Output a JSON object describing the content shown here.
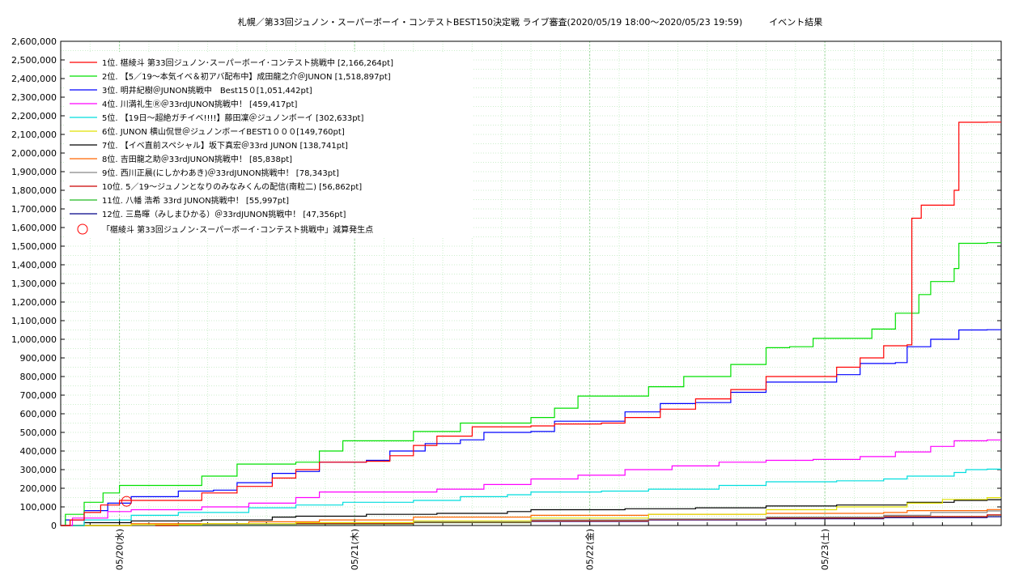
{
  "chart_data": {
    "type": "line",
    "title": "札幌／第33回ジュノン・スーパーボーイ・コンテストBEST150決定戦 ライブ審査(2020/05/19 18:00〜2020/05/23 19:59)　　　イベント結果",
    "xlabel": "",
    "ylabel": "",
    "x_range_days": [
      0,
      4.0
    ],
    "ylim": [
      0,
      2600000
    ],
    "y_ticks": [
      0,
      100000,
      200000,
      300000,
      400000,
      500000,
      600000,
      700000,
      800000,
      900000,
      1000000,
      1100000,
      1200000,
      1300000,
      1400000,
      1500000,
      1600000,
      1700000,
      1800000,
      1900000,
      2000000,
      2100000,
      2200000,
      2300000,
      2400000,
      2500000,
      2600000
    ],
    "y_tick_labels": [
      "0",
      "100,000",
      "200,000",
      "300,000",
      "400,000",
      "500,000",
      "600,000",
      "700,000",
      "800,000",
      "900,000",
      "1,000,000",
      "1,100,000",
      "1,200,000",
      "1,300,000",
      "1,400,000",
      "1,500,000",
      "1,600,000",
      "1,700,000",
      "1,800,000",
      "1,900,000",
      "2,000,000",
      "2,100,000",
      "2,200,000",
      "2,300,000",
      "2,400,000",
      "2,500,000",
      "2,600,000"
    ],
    "x_ticks": [
      {
        "x": 0.25,
        "label": "05/20(水)"
      },
      {
        "x": 1.25,
        "label": "05/21(木)"
      },
      {
        "x": 2.25,
        "label": "05/22(金)"
      },
      {
        "x": 3.25,
        "label": "05/23(土)"
      }
    ],
    "grid": true,
    "legend_position": "top-left",
    "series": [
      {
        "name": "1位. 椹綾斗 第33回ジュノン･スーパーボーイ･コンテスト挑戦中 [2,166,264pt]",
        "color": "#ff0000",
        "points": [
          [
            0,
            0
          ],
          [
            0.04,
            30000
          ],
          [
            0.1,
            70000
          ],
          [
            0.17,
            110000
          ],
          [
            0.25,
            135000
          ],
          [
            0.5,
            135000
          ],
          [
            0.6,
            175000
          ],
          [
            0.75,
            210000
          ],
          [
            0.9,
            255000
          ],
          [
            1.0,
            300000
          ],
          [
            1.1,
            340000
          ],
          [
            1.3,
            345000
          ],
          [
            1.4,
            375000
          ],
          [
            1.5,
            430000
          ],
          [
            1.6,
            480000
          ],
          [
            1.75,
            530000
          ],
          [
            1.9,
            530000
          ],
          [
            2.0,
            535000
          ],
          [
            2.1,
            545000
          ],
          [
            2.3,
            550000
          ],
          [
            2.4,
            580000
          ],
          [
            2.55,
            625000
          ],
          [
            2.7,
            680000
          ],
          [
            2.85,
            730000
          ],
          [
            3.0,
            800000
          ],
          [
            3.2,
            800000
          ],
          [
            3.3,
            850000
          ],
          [
            3.4,
            900000
          ],
          [
            3.5,
            965000
          ],
          [
            3.6,
            970000
          ],
          [
            3.62,
            1650000
          ],
          [
            3.66,
            1720000
          ],
          [
            3.78,
            1720000
          ],
          [
            3.8,
            1800000
          ],
          [
            3.82,
            2165000
          ],
          [
            3.94,
            2166264
          ]
        ]
      },
      {
        "name": "2位. 【5／19〜本気イベ＆初アバ配布中】成田龍之介＠JUNON [1,518,897pt]",
        "color": "#00e000",
        "points": [
          [
            0,
            0
          ],
          [
            0.02,
            60000
          ],
          [
            0.1,
            125000
          ],
          [
            0.18,
            175000
          ],
          [
            0.25,
            215000
          ],
          [
            0.5,
            215000
          ],
          [
            0.6,
            265000
          ],
          [
            0.75,
            330000
          ],
          [
            1.0,
            340000
          ],
          [
            1.1,
            400000
          ],
          [
            1.2,
            455000
          ],
          [
            1.5,
            505000
          ],
          [
            1.7,
            550000
          ],
          [
            1.95,
            550000
          ],
          [
            2.0,
            580000
          ],
          [
            2.1,
            630000
          ],
          [
            2.2,
            695000
          ],
          [
            2.45,
            695000
          ],
          [
            2.5,
            745000
          ],
          [
            2.65,
            800000
          ],
          [
            2.85,
            865000
          ],
          [
            3.0,
            955000
          ],
          [
            3.1,
            960000
          ],
          [
            3.2,
            1005000
          ],
          [
            3.45,
            1055000
          ],
          [
            3.55,
            1140000
          ],
          [
            3.65,
            1240000
          ],
          [
            3.7,
            1310000
          ],
          [
            3.8,
            1380000
          ],
          [
            3.82,
            1515000
          ],
          [
            3.94,
            1518897
          ]
        ]
      },
      {
        "name": "3位. 明井紀樹＠JUNON挑戦中　Best15０[1,051,442pt]",
        "color": "#0000ff",
        "points": [
          [
            0,
            0
          ],
          [
            0.02,
            30000
          ],
          [
            0.1,
            80000
          ],
          [
            0.2,
            120000
          ],
          [
            0.3,
            155000
          ],
          [
            0.5,
            185000
          ],
          [
            0.65,
            190000
          ],
          [
            0.75,
            230000
          ],
          [
            0.9,
            280000
          ],
          [
            1.0,
            290000
          ],
          [
            1.1,
            340000
          ],
          [
            1.3,
            350000
          ],
          [
            1.4,
            400000
          ],
          [
            1.55,
            440000
          ],
          [
            1.7,
            460000
          ],
          [
            1.8,
            500000
          ],
          [
            2.0,
            505000
          ],
          [
            2.1,
            560000
          ],
          [
            2.3,
            560000
          ],
          [
            2.4,
            610000
          ],
          [
            2.55,
            655000
          ],
          [
            2.7,
            660000
          ],
          [
            2.85,
            715000
          ],
          [
            3.0,
            770000
          ],
          [
            3.2,
            770000
          ],
          [
            3.3,
            810000
          ],
          [
            3.4,
            870000
          ],
          [
            3.55,
            875000
          ],
          [
            3.6,
            960000
          ],
          [
            3.7,
            1000000
          ],
          [
            3.82,
            1050000
          ],
          [
            3.94,
            1051442
          ]
        ]
      },
      {
        "name": "4位. 川満礼生Ⓡ＠33rdJUNON挑戦中！ [459,417pt]",
        "color": "#ff00ff",
        "points": [
          [
            0,
            0
          ],
          [
            0.05,
            40000
          ],
          [
            0.2,
            75000
          ],
          [
            0.3,
            85000
          ],
          [
            0.6,
            100000
          ],
          [
            0.8,
            120000
          ],
          [
            1.0,
            150000
          ],
          [
            1.1,
            180000
          ],
          [
            1.4,
            180000
          ],
          [
            1.6,
            195000
          ],
          [
            1.8,
            220000
          ],
          [
            2.0,
            250000
          ],
          [
            2.2,
            270000
          ],
          [
            2.4,
            300000
          ],
          [
            2.6,
            320000
          ],
          [
            2.8,
            340000
          ],
          [
            3.0,
            350000
          ],
          [
            3.2,
            355000
          ],
          [
            3.4,
            370000
          ],
          [
            3.55,
            395000
          ],
          [
            3.7,
            425000
          ],
          [
            3.8,
            455000
          ],
          [
            3.94,
            459417
          ]
        ]
      },
      {
        "name": "5位. 【19日〜超絶ガチイベ!!!!】藤田凜＠ジュノンボーイ [302,633pt]",
        "color": "#00dddd",
        "points": [
          [
            0,
            0
          ],
          [
            0.1,
            30000
          ],
          [
            0.3,
            55000
          ],
          [
            0.5,
            70000
          ],
          [
            0.8,
            95000
          ],
          [
            1.0,
            110000
          ],
          [
            1.2,
            125000
          ],
          [
            1.5,
            135000
          ],
          [
            1.7,
            155000
          ],
          [
            1.9,
            165000
          ],
          [
            2.0,
            180000
          ],
          [
            2.3,
            185000
          ],
          [
            2.5,
            195000
          ],
          [
            2.8,
            215000
          ],
          [
            3.0,
            235000
          ],
          [
            3.3,
            240000
          ],
          [
            3.5,
            250000
          ],
          [
            3.6,
            265000
          ],
          [
            3.8,
            285000
          ],
          [
            3.85,
            300000
          ],
          [
            3.94,
            302633
          ]
        ]
      },
      {
        "name": "6位. JUNON 横山侃世＠ジュノンボーイBEST1０００[149,760pt]",
        "color": "#e0e000",
        "points": [
          [
            0,
            0
          ],
          [
            0.3,
            5000
          ],
          [
            0.6,
            10000
          ],
          [
            1.0,
            15000
          ],
          [
            1.5,
            25000
          ],
          [
            2.0,
            40000
          ],
          [
            2.5,
            60000
          ],
          [
            3.0,
            85000
          ],
          [
            3.3,
            100000
          ],
          [
            3.6,
            120000
          ],
          [
            3.75,
            140000
          ],
          [
            3.94,
            149760
          ]
        ]
      },
      {
        "name": "7位. 【イベ直前スペシャル】坂下真宏＠33rd JUNON [138,741pt]",
        "color": "#000000",
        "points": [
          [
            0,
            0
          ],
          [
            0.1,
            15000
          ],
          [
            0.3,
            25000
          ],
          [
            0.6,
            30000
          ],
          [
            0.9,
            45000
          ],
          [
            1.0,
            50000
          ],
          [
            1.3,
            60000
          ],
          [
            1.6,
            65000
          ],
          [
            1.9,
            75000
          ],
          [
            2.0,
            85000
          ],
          [
            2.4,
            90000
          ],
          [
            2.7,
            95000
          ],
          [
            3.0,
            105000
          ],
          [
            3.3,
            110000
          ],
          [
            3.6,
            125000
          ],
          [
            3.8,
            135000
          ],
          [
            3.94,
            138741
          ]
        ]
      },
      {
        "name": "8位. 吉田龍之助＠33rdJUNON挑戦中！ [85,838pt]",
        "color": "#ff6600",
        "points": [
          [
            0,
            0
          ],
          [
            0.3,
            10000
          ],
          [
            0.8,
            20000
          ],
          [
            1.1,
            30000
          ],
          [
            1.5,
            45000
          ],
          [
            2.0,
            55000
          ],
          [
            2.5,
            60000
          ],
          [
            3.0,
            65000
          ],
          [
            3.5,
            70000
          ],
          [
            3.6,
            80000
          ],
          [
            3.94,
            85838
          ]
        ]
      },
      {
        "name": "9位. 西川正晨(にしかわあき)＠33rdJUNON挑戦中！ [78,343pt]",
        "color": "#888888",
        "points": [
          [
            0,
            0
          ],
          [
            0.4,
            5000
          ],
          [
            1.0,
            15000
          ],
          [
            1.5,
            20000
          ],
          [
            2.0,
            30000
          ],
          [
            2.5,
            35000
          ],
          [
            3.0,
            45000
          ],
          [
            3.5,
            55000
          ],
          [
            3.7,
            70000
          ],
          [
            3.94,
            78343
          ]
        ]
      },
      {
        "name": "10位. 5／19〜ジュノンとなりのみなみくんの配信(南粒二) [56,862pt]",
        "color": "#cc0000",
        "points": [
          [
            0,
            0
          ],
          [
            0.5,
            5000
          ],
          [
            1.0,
            10000
          ],
          [
            1.5,
            18000
          ],
          [
            2.0,
            25000
          ],
          [
            2.5,
            32000
          ],
          [
            3.0,
            40000
          ],
          [
            3.5,
            48000
          ],
          [
            3.94,
            56862
          ]
        ]
      },
      {
        "name": "11位. 八幡 浩希 33rd JUNON挑戦中！ [55,997pt]",
        "color": "#22bb22",
        "points": [
          [
            0,
            0
          ],
          [
            0.5,
            3000
          ],
          [
            1.0,
            8000
          ],
          [
            1.5,
            15000
          ],
          [
            2.0,
            25000
          ],
          [
            2.5,
            35000
          ],
          [
            3.0,
            42000
          ],
          [
            3.5,
            48000
          ],
          [
            3.94,
            55997
          ]
        ]
      },
      {
        "name": "12位. 三島暉（みしまひかる）＠33rdJUNON挑戦中！ [47,356pt]",
        "color": "#000088",
        "points": [
          [
            0,
            0
          ],
          [
            0.5,
            4000
          ],
          [
            1.0,
            10000
          ],
          [
            1.5,
            16000
          ],
          [
            2.0,
            22000
          ],
          [
            2.5,
            30000
          ],
          [
            3.0,
            36000
          ],
          [
            3.5,
            42000
          ],
          [
            3.94,
            47356
          ]
        ]
      }
    ],
    "markers": {
      "name": "「椹綾斗 第33回ジュノン･スーパーボーイ･コンテスト挑戦中」減算発生点",
      "color": "#ff0000",
      "points": [
        [
          0.28,
          130000
        ]
      ]
    }
  }
}
